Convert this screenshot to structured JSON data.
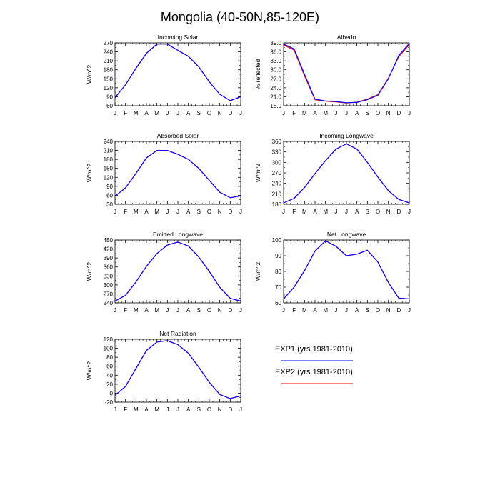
{
  "title": "Mongolia (40-50N,85-120E)",
  "months": [
    "J",
    "F",
    "M",
    "A",
    "M",
    "J",
    "J",
    "A",
    "S",
    "O",
    "N",
    "D",
    "J"
  ],
  "legend": [
    {
      "label": "EXP1 (yrs 1981-2010)",
      "color": "#0000ff"
    },
    {
      "label": "EXP2 (yrs 1981-2010)",
      "color": "#ff0000"
    }
  ],
  "chart_data": [
    {
      "type": "line",
      "title": "Incoming Solar",
      "ylabel": "W/m^2",
      "ylim": [
        60,
        270
      ],
      "yticks": [
        "60",
        "90",
        "120",
        "150",
        "180",
        "210",
        "240",
        "270"
      ],
      "series": [
        {
          "name": "EXP1 (yrs 1981-2010)",
          "color": "#0000ff",
          "values": [
            87,
            130,
            185,
            235,
            266,
            266,
            245,
            225,
            190,
            140,
            98,
            77,
            90
          ]
        },
        {
          "name": "EXP2 (yrs 1981-2010)",
          "color": "#ff0000",
          "values": [
            87,
            130,
            185,
            235,
            266,
            266,
            245,
            225,
            190,
            140,
            98,
            77,
            90
          ]
        }
      ]
    },
    {
      "type": "line",
      "title": "Albedo",
      "ylabel": "% reflected",
      "ylim": [
        18,
        39
      ],
      "yticks": [
        "18.0",
        "21.0",
        "24.0",
        "27.0",
        "30.0",
        "33.0",
        "36.0",
        "39.0"
      ],
      "series": [
        {
          "name": "EXP1 (yrs 1981-2010)",
          "color": "#0000ff",
          "values": [
            38.6,
            37.0,
            28.5,
            20.2,
            19.6,
            19.4,
            19.0,
            19.1,
            20.0,
            21.5,
            27.0,
            34.8,
            38.8
          ]
        },
        {
          "name": "EXP2 (yrs 1981-2010)",
          "color": "#ff0000",
          "values": [
            38.3,
            36.6,
            28.0,
            20.0,
            19.5,
            19.3,
            18.9,
            19.2,
            20.2,
            21.7,
            27.2,
            34.4,
            38.4
          ]
        }
      ]
    },
    {
      "type": "line",
      "title": "Absorbed Solar",
      "ylabel": "W/m^2",
      "ylim": [
        30,
        240
      ],
      "yticks": [
        "30",
        "60",
        "90",
        "120",
        "150",
        "180",
        "210",
        "240"
      ],
      "series": [
        {
          "name": "EXP1 (yrs 1981-2010)",
          "color": "#0000ff",
          "values": [
            57,
            85,
            133,
            185,
            210,
            210,
            197,
            180,
            150,
            110,
            70,
            52,
            58
          ]
        },
        {
          "name": "EXP2 (yrs 1981-2010)",
          "color": "#ff0000",
          "values": [
            57,
            85,
            133,
            185,
            210,
            210,
            197,
            180,
            150,
            110,
            70,
            52,
            58
          ]
        }
      ]
    },
    {
      "type": "line",
      "title": "Incoming Longwave",
      "ylabel": "W/m^2",
      "ylim": [
        180,
        360
      ],
      "yticks": [
        "180",
        "210",
        "240",
        "270",
        "300",
        "330",
        "360"
      ],
      "series": [
        {
          "name": "EXP1 (yrs 1981-2010)",
          "color": "#0000ff",
          "values": [
            184,
            197,
            228,
            268,
            305,
            338,
            353,
            338,
            300,
            258,
            219,
            194,
            184
          ]
        },
        {
          "name": "EXP2 (yrs 1981-2010)",
          "color": "#ff0000",
          "values": [
            184,
            197,
            228,
            268,
            305,
            338,
            353,
            338,
            300,
            258,
            219,
            194,
            184
          ]
        }
      ]
    },
    {
      "type": "line",
      "title": "Emitted Longwave",
      "ylabel": "W/m^2",
      "ylim": [
        240,
        450
      ],
      "yticks": [
        "240",
        "270",
        "300",
        "330",
        "360",
        "390",
        "420",
        "450"
      ],
      "series": [
        {
          "name": "EXP1 (yrs 1981-2010)",
          "color": "#0000ff",
          "values": [
            246,
            265,
            310,
            362,
            405,
            433,
            443,
            430,
            393,
            345,
            292,
            255,
            246
          ]
        },
        {
          "name": "EXP2 (yrs 1981-2010)",
          "color": "#ff0000",
          "values": [
            246,
            265,
            310,
            362,
            405,
            433,
            443,
            430,
            393,
            345,
            292,
            255,
            246
          ]
        }
      ]
    },
    {
      "type": "line",
      "title": "Net Longwave",
      "ylabel": "W/m^2",
      "ylim": [
        60,
        100
      ],
      "yticks": [
        "60",
        "70",
        "80",
        "90",
        "100"
      ],
      "series": [
        {
          "name": "EXP1 (yrs 1981-2010)",
          "color": "#0000ff",
          "values": [
            62.5,
            70,
            80.5,
            93,
            99.5,
            96,
            90,
            91,
            93.5,
            86,
            73,
            63,
            62.5
          ]
        },
        {
          "name": "EXP2 (yrs 1981-2010)",
          "color": "#ff0000",
          "values": [
            62.5,
            70,
            80.5,
            93,
            99.5,
            96,
            90,
            91,
            93.5,
            86,
            73,
            63,
            62.5
          ]
        }
      ]
    },
    {
      "type": "line",
      "title": "Net Radiation",
      "ylabel": "W/m^2",
      "ylim": [
        -20,
        120
      ],
      "yticks": [
        "-20",
        "0",
        "20",
        "40",
        "60",
        "80",
        "100",
        "120"
      ],
      "series": [
        {
          "name": "EXP1 (yrs 1981-2010)",
          "color": "#0000ff",
          "values": [
            -5,
            15,
            55,
            95,
            114,
            117,
            108,
            89,
            58,
            24,
            -3,
            -12,
            -6
          ]
        },
        {
          "name": "EXP2 (yrs 1981-2010)",
          "color": "#ff0000",
          "values": [
            -5,
            15,
            55,
            95,
            114,
            117,
            108,
            89,
            58,
            24,
            -3,
            -12,
            -6
          ]
        }
      ]
    }
  ]
}
